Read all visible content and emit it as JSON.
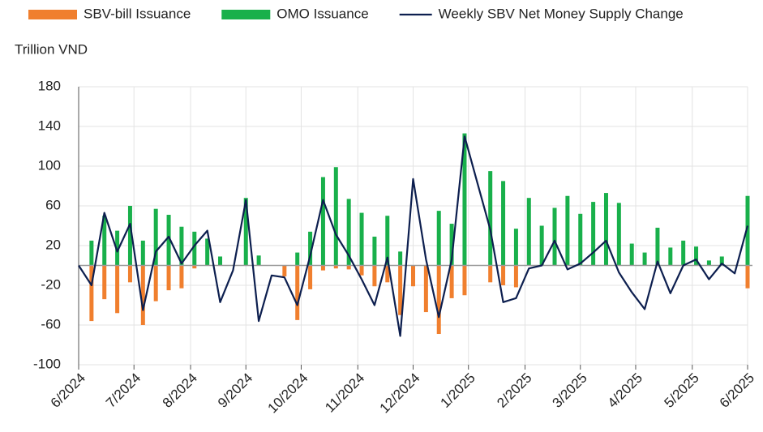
{
  "chart_data": {
    "type": "bar-line",
    "y_label": "Trillion VND",
    "x": [
      0,
      1,
      2,
      3,
      4,
      5,
      6,
      7,
      8,
      9,
      10,
      11,
      12,
      13,
      14,
      15,
      16,
      17,
      18,
      19,
      20,
      21,
      22,
      23,
      24,
      25,
      26,
      27,
      28,
      29,
      30,
      31,
      32,
      33,
      34,
      35,
      36,
      37,
      38,
      39,
      40,
      41,
      42,
      43,
      44,
      45,
      46,
      47,
      48,
      49,
      50,
      51,
      52
    ],
    "series": [
      {
        "name": "SBV-bill Issuance",
        "kind": "bar",
        "color": "#f07f2e",
        "values": [
          0,
          -56,
          -34,
          -48,
          -17,
          -60,
          -36,
          -25,
          -23,
          -3,
          0,
          0,
          0,
          0,
          0,
          0,
          -11,
          -55,
          -24,
          -5,
          -3,
          -4,
          -10,
          -21,
          -17,
          -50,
          -21,
          -47,
          -69,
          -33,
          -30,
          0,
          -17,
          -20,
          -22,
          0,
          0,
          0,
          0,
          0,
          0,
          0,
          0,
          0,
          0,
          0,
          0,
          0,
          0,
          0,
          0,
          0,
          -23
        ]
      },
      {
        "name": "OMO Issuance",
        "kind": "bar",
        "color": "#19b04b",
        "values": [
          0,
          25,
          50,
          35,
          60,
          25,
          57,
          51,
          39,
          34,
          27,
          9,
          0,
          68,
          10,
          0,
          0,
          13,
          34,
          89,
          99,
          67,
          53,
          29,
          50,
          14,
          0,
          0,
          55,
          42,
          133,
          0,
          95,
          85,
          37,
          68,
          40,
          58,
          70,
          52,
          64,
          73,
          63,
          22,
          13,
          38,
          18,
          25,
          19,
          5,
          9,
          0,
          70
        ]
      },
      {
        "name": "Weekly SBV Net Money Supply Change",
        "kind": "line",
        "color": "#0d1f4f",
        "values": [
          0,
          -20,
          53,
          14,
          42,
          -45,
          14,
          29,
          2,
          20,
          35,
          -37,
          -5,
          66,
          -56,
          -10,
          -12,
          -40,
          10,
          66,
          31,
          10,
          -14,
          -40,
          8,
          -71,
          87,
          6,
          -52,
          6,
          130,
          83,
          36,
          -37,
          -33,
          -3,
          0,
          25,
          -4,
          2,
          13,
          25,
          -7,
          -27,
          -44,
          4,
          -28,
          0,
          6,
          -14,
          2,
          -8,
          40
        ]
      }
    ],
    "xlim": [
      0,
      52
    ],
    "xticks": [
      {
        "value": 0,
        "label": "6/2024"
      },
      {
        "value": 4.3,
        "label": "7/2024"
      },
      {
        "value": 8.7,
        "label": "8/2024"
      },
      {
        "value": 13,
        "label": "9/2024"
      },
      {
        "value": 17.3,
        "label": "10/2024"
      },
      {
        "value": 21.7,
        "label": "11/2024"
      },
      {
        "value": 26,
        "label": "12/2024"
      },
      {
        "value": 30.3,
        "label": "1/2025"
      },
      {
        "value": 34.7,
        "label": "2/2025"
      },
      {
        "value": 39,
        "label": "3/2025"
      },
      {
        "value": 43.3,
        "label": "4/2025"
      },
      {
        "value": 47.7,
        "label": "5/2025"
      },
      {
        "value": 52,
        "label": "6/2025"
      }
    ],
    "ylim": [
      -100,
      180
    ],
    "yticks": [
      -100,
      -60,
      -20,
      20,
      60,
      100,
      140,
      180
    ],
    "grid": true,
    "legend": "top"
  }
}
